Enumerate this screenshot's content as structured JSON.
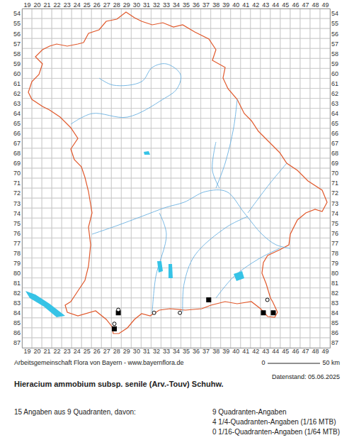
{
  "chart_data": {
    "type": "scatter",
    "title": "Hieracium ammobium subsp. senile (Arv.-Touv) Schuhw.",
    "source": "Arbeitsgemeinschaft Flora von Bayern - www.bayernflora.de",
    "date_note": "Datenstand: 05.06.2025",
    "scale_labels": [
      "0",
      "50 km"
    ],
    "annotations": [
      "15 Angaben aus 9 Quadranten, davon:",
      "9 Quadranten-Angaben",
      "4 1/4-Quadranten-Angaben (1/16 MTB)",
      "0 1/16-Quadranten-Angaben (1/64 MTB)"
    ],
    "xlim": [
      18.5,
      49.5
    ],
    "ylim": [
      87.5,
      53.5
    ],
    "xticks": [
      19,
      20,
      21,
      22,
      23,
      24,
      25,
      26,
      27,
      28,
      29,
      30,
      31,
      32,
      33,
      34,
      35,
      36,
      37,
      38,
      39,
      40,
      41,
      42,
      43,
      44,
      45,
      46,
      47,
      48,
      49
    ],
    "yticks": [
      54,
      55,
      56,
      57,
      58,
      59,
      60,
      61,
      62,
      63,
      64,
      65,
      66,
      67,
      68,
      69,
      70,
      71,
      72,
      73,
      74,
      75,
      76,
      77,
      78,
      79,
      80,
      81,
      82,
      83,
      84,
      85,
      86,
      87
    ],
    "grid": true,
    "series": [
      {
        "marker": "square",
        "color": "#000000",
        "x": [
          28.2,
          27.8,
          37.3,
          42.8,
          43.8
        ],
        "values": [
          84.0,
          85.6,
          82.7,
          84.0,
          84.0
        ]
      },
      {
        "marker": "open-circle",
        "color": "#000000",
        "x": [
          28.2,
          27.8,
          31.8,
          34.4,
          43.2
        ],
        "values": [
          83.7,
          85.1,
          84.0,
          84.0,
          82.7
        ]
      }
    ]
  }
}
